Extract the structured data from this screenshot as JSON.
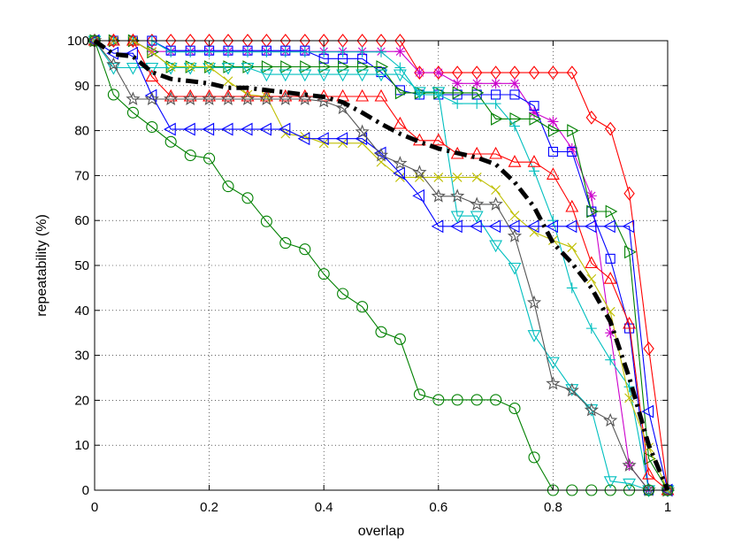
{
  "chart_data": {
    "type": "line",
    "title": "",
    "xlabel": "overlap",
    "ylabel": "repeatability (%)",
    "xlim": [
      0,
      1
    ],
    "ylim": [
      0,
      100
    ],
    "xticks": [
      0,
      0.2,
      0.4,
      0.6,
      0.8,
      1
    ],
    "xtick_labels": [
      "0",
      "0.2",
      "0.4",
      "0.6",
      "0.8",
      "1"
    ],
    "yticks": [
      0,
      10,
      20,
      30,
      40,
      50,
      60,
      70,
      80,
      90,
      100
    ],
    "ytick_labels": [
      "0",
      "10",
      "20",
      "30",
      "40",
      "50",
      "60",
      "70",
      "80",
      "90",
      "100"
    ],
    "grid": true,
    "series": [
      {
        "name": "red-diamond",
        "color": "#ff0000",
        "marker": "diamond",
        "x": [
          0,
          0.033,
          0.067,
          0.1,
          0.133,
          0.167,
          0.2,
          0.233,
          0.267,
          0.3,
          0.333,
          0.367,
          0.4,
          0.433,
          0.467,
          0.5,
          0.533,
          0.567,
          0.6,
          0.633,
          0.667,
          0.7,
          0.733,
          0.767,
          0.8,
          0.833,
          0.867,
          0.9,
          0.933,
          0.967,
          1
        ],
        "y": [
          100,
          100,
          100,
          100,
          100,
          100,
          100,
          100,
          100,
          100,
          100,
          100,
          100,
          100,
          100,
          100,
          100,
          92.9,
          92.9,
          92.9,
          92.9,
          92.9,
          92.9,
          92.9,
          92.9,
          92.9,
          82.9,
          80.4,
          66,
          31.5,
          0
        ]
      },
      {
        "name": "magenta-star",
        "color": "#cc00cc",
        "marker": "asterisk",
        "x": [
          0,
          0.033,
          0.067,
          0.1,
          0.133,
          0.167,
          0.2,
          0.233,
          0.267,
          0.3,
          0.333,
          0.367,
          0.4,
          0.433,
          0.467,
          0.5,
          0.533,
          0.567,
          0.6,
          0.633,
          0.667,
          0.7,
          0.733,
          0.767,
          0.8,
          0.833,
          0.867,
          0.9,
          0.933,
          0.967,
          1
        ],
        "y": [
          100,
          100,
          100,
          97.6,
          97.6,
          97.6,
          97.6,
          97.6,
          97.6,
          97.6,
          97.6,
          97.6,
          97.6,
          97.6,
          97.6,
          97.6,
          97.6,
          92.9,
          92.9,
          90.5,
          90.5,
          90.5,
          90.5,
          84,
          82,
          76,
          65.5,
          35,
          5.5,
          0,
          0
        ]
      },
      {
        "name": "blue-square",
        "color": "#0000ff",
        "marker": "square",
        "x": [
          0,
          0.033,
          0.067,
          0.1,
          0.133,
          0.167,
          0.2,
          0.233,
          0.267,
          0.3,
          0.333,
          0.367,
          0.4,
          0.433,
          0.467,
          0.5,
          0.533,
          0.567,
          0.6,
          0.633,
          0.667,
          0.7,
          0.733,
          0.767,
          0.8,
          0.833,
          0.867,
          0.9,
          0.933,
          0.967,
          1
        ],
        "y": [
          100,
          100,
          100,
          100,
          97.8,
          97.8,
          97.8,
          97.8,
          97.8,
          97.8,
          97.8,
          97.8,
          96,
          96,
          96,
          93,
          89,
          88,
          88,
          88,
          88,
          88,
          88,
          85.5,
          75.3,
          75.3,
          62,
          51.5,
          36,
          0,
          0
        ]
      },
      {
        "name": "green-triangle-right",
        "color": "#008000",
        "marker": "triangle-right",
        "x": [
          0,
          0.033,
          0.067,
          0.1,
          0.133,
          0.167,
          0.2,
          0.233,
          0.267,
          0.3,
          0.333,
          0.367,
          0.4,
          0.433,
          0.467,
          0.5,
          0.533,
          0.567,
          0.6,
          0.633,
          0.667,
          0.7,
          0.733,
          0.767,
          0.8,
          0.833,
          0.867,
          0.9,
          0.933,
          0.967,
          1
        ],
        "y": [
          100,
          100,
          100,
          97.5,
          94.2,
          94.2,
          94.2,
          94.2,
          94.2,
          94.2,
          94.2,
          94.2,
          94.2,
          94.2,
          94.2,
          94.2,
          88.4,
          88.4,
          88.4,
          88.4,
          88.4,
          82.6,
          82.6,
          82.6,
          80,
          80,
          62,
          62,
          53,
          7,
          0
        ]
      },
      {
        "name": "cyan-triangle-down",
        "color": "#00bfbf",
        "marker": "triangle-down",
        "x": [
          0,
          0.033,
          0.067,
          0.1,
          0.133,
          0.167,
          0.2,
          0.233,
          0.267,
          0.3,
          0.333,
          0.367,
          0.4,
          0.433,
          0.467,
          0.5,
          0.533,
          0.567,
          0.6,
          0.633,
          0.667,
          0.7,
          0.733,
          0.767,
          0.8,
          0.833,
          0.867,
          0.9,
          0.933,
          0.967,
          1
        ],
        "y": [
          100,
          94,
          94,
          94,
          94,
          94,
          94,
          94,
          94,
          92.5,
          92.5,
          92.5,
          92.5,
          92.5,
          92.5,
          92.5,
          92.5,
          88.6,
          88.6,
          61,
          61,
          54.5,
          49.5,
          34.5,
          28.5,
          22.5,
          18,
          2,
          1.5,
          0,
          0
        ]
      },
      {
        "name": "cyan-plus",
        "color": "#00bfbf",
        "marker": "plus",
        "x": [
          0,
          0.033,
          0.067,
          0.1,
          0.133,
          0.167,
          0.2,
          0.233,
          0.267,
          0.3,
          0.333,
          0.367,
          0.4,
          0.433,
          0.467,
          0.5,
          0.533,
          0.567,
          0.6,
          0.633,
          0.667,
          0.7,
          0.733,
          0.767,
          0.8,
          0.833,
          0.867,
          0.9,
          0.933,
          0.967,
          1
        ],
        "y": [
          100,
          100,
          100,
          100,
          97.5,
          97.5,
          97.5,
          97.5,
          97.5,
          97.5,
          97.5,
          97.5,
          97.5,
          97.5,
          97.5,
          97.5,
          94,
          88,
          88,
          86,
          86,
          86,
          81,
          71,
          60,
          45,
          36,
          29,
          23,
          0,
          0
        ]
      },
      {
        "name": "red-triangle-up",
        "color": "#ff0000",
        "marker": "triangle-up",
        "x": [
          0,
          0.033,
          0.067,
          0.1,
          0.133,
          0.167,
          0.2,
          0.233,
          0.267,
          0.3,
          0.333,
          0.367,
          0.4,
          0.433,
          0.467,
          0.5,
          0.533,
          0.567,
          0.6,
          0.633,
          0.667,
          0.7,
          0.733,
          0.767,
          0.8,
          0.833,
          0.867,
          0.9,
          0.933,
          0.967,
          1
        ],
        "y": [
          100,
          100,
          100,
          92,
          87.6,
          87.6,
          87.6,
          87.6,
          87.6,
          87.6,
          87.6,
          87.6,
          87.6,
          87.6,
          87.6,
          87.6,
          81.5,
          77.8,
          77.8,
          74.8,
          74.8,
          74.8,
          73,
          73,
          70.2,
          63,
          50.5,
          47,
          37,
          3.5,
          0
        ]
      },
      {
        "name": "yellow-x",
        "color": "#bfbf00",
        "marker": "x",
        "x": [
          0,
          0.033,
          0.067,
          0.1,
          0.133,
          0.167,
          0.2,
          0.233,
          0.267,
          0.3,
          0.333,
          0.367,
          0.4,
          0.433,
          0.467,
          0.5,
          0.533,
          0.567,
          0.6,
          0.633,
          0.667,
          0.7,
          0.733,
          0.767,
          0.8,
          0.833,
          0.867,
          0.9,
          0.933,
          0.967,
          1
        ],
        "y": [
          100,
          100,
          100,
          97.5,
          94.2,
          94.2,
          94.2,
          91,
          88,
          87.6,
          79.3,
          78.7,
          77.2,
          77.2,
          77.2,
          73,
          69.6,
          69.6,
          69.6,
          69.6,
          69.6,
          66.8,
          61.1,
          57.4,
          55.6,
          54,
          47,
          39.7,
          20.5,
          9.5,
          0
        ]
      },
      {
        "name": "blue-triangle-left",
        "color": "#0000ff",
        "marker": "triangle-left",
        "x": [
          0,
          0.033,
          0.067,
          0.1,
          0.133,
          0.167,
          0.2,
          0.233,
          0.267,
          0.3,
          0.333,
          0.367,
          0.4,
          0.433,
          0.467,
          0.5,
          0.533,
          0.567,
          0.6,
          0.633,
          0.667,
          0.7,
          0.733,
          0.767,
          0.8,
          0.833,
          0.867,
          0.9,
          0.933,
          0.967,
          1
        ],
        "y": [
          100,
          97.2,
          97.2,
          87.8,
          80.3,
          80.3,
          80.3,
          80.3,
          80.3,
          80.3,
          80.3,
          78.2,
          78.2,
          78.2,
          78.2,
          75,
          70.5,
          65.5,
          58.7,
          58.7,
          58.7,
          58.7,
          58.7,
          58.7,
          58.7,
          58.7,
          58.7,
          58.7,
          58.7,
          17.5,
          0
        ]
      },
      {
        "name": "gray-pentagram",
        "color": "#555555",
        "marker": "star5",
        "x": [
          0,
          0.033,
          0.067,
          0.1,
          0.133,
          0.167,
          0.2,
          0.233,
          0.267,
          0.3,
          0.333,
          0.367,
          0.4,
          0.433,
          0.467,
          0.5,
          0.533,
          0.567,
          0.6,
          0.633,
          0.667,
          0.7,
          0.733,
          0.767,
          0.8,
          0.833,
          0.867,
          0.9,
          0.933,
          0.967,
          1
        ],
        "y": [
          100,
          94.7,
          87,
          87,
          87,
          87,
          87,
          87,
          87,
          87,
          87,
          87,
          86.5,
          85,
          79.7,
          74.5,
          72.7,
          70.7,
          65.4,
          65.4,
          63.6,
          63.6,
          56.5,
          41.7,
          23.7,
          22.2,
          17.8,
          15.5,
          5.5,
          0,
          0
        ]
      },
      {
        "name": "green-circle",
        "color": "#008000",
        "marker": "circle",
        "x": [
          0,
          0.033,
          0.067,
          0.1,
          0.133,
          0.167,
          0.2,
          0.233,
          0.267,
          0.3,
          0.333,
          0.367,
          0.4,
          0.433,
          0.467,
          0.5,
          0.533,
          0.567,
          0.6,
          0.633,
          0.667,
          0.7,
          0.733,
          0.767,
          0.8,
          0.833,
          0.867,
          0.9,
          0.933,
          0.967,
          1
        ],
        "y": [
          100,
          88,
          84,
          80.8,
          77.5,
          74.5,
          73.8,
          67.6,
          65,
          59.8,
          55,
          53.6,
          48.1,
          43.7,
          40.8,
          35.2,
          33.6,
          21.3,
          20.1,
          20.1,
          20.1,
          20.1,
          18.2,
          7.3,
          0,
          0,
          0,
          0,
          0,
          0,
          0
        ]
      },
      {
        "name": "mean",
        "color": "#000000",
        "marker": "none",
        "dash": "dashdot",
        "width": 5,
        "x": [
          0,
          0.033,
          0.067,
          0.1,
          0.133,
          0.167,
          0.2,
          0.233,
          0.267,
          0.3,
          0.333,
          0.367,
          0.4,
          0.433,
          0.467,
          0.5,
          0.533,
          0.567,
          0.6,
          0.633,
          0.667,
          0.7,
          0.733,
          0.767,
          0.8,
          0.833,
          0.867,
          0.9,
          0.933,
          0.967,
          1
        ],
        "y": [
          100,
          97,
          96.5,
          93,
          91.5,
          91,
          90.5,
          89.5,
          89.5,
          89,
          88.5,
          88,
          87.5,
          86.3,
          84,
          81.5,
          79.3,
          77.5,
          76,
          75,
          74,
          72.5,
          68.5,
          63,
          55,
          50.5,
          45,
          37.5,
          25,
          10,
          0
        ]
      }
    ]
  }
}
